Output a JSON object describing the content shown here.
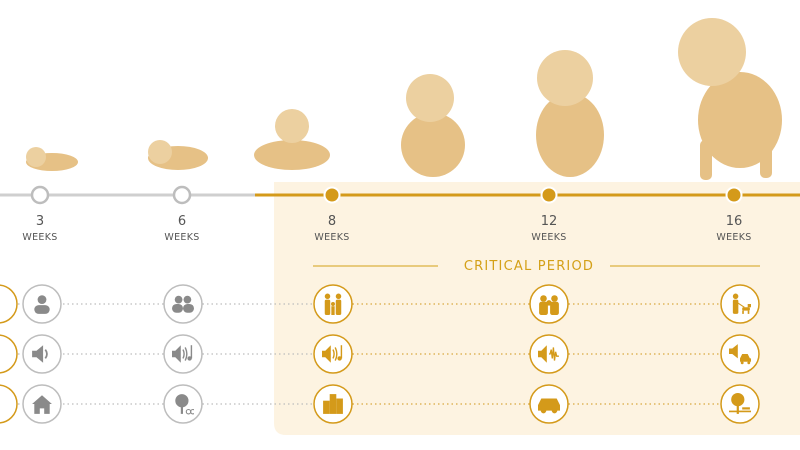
{
  "timeline": {
    "milestones": [
      {
        "number": "3",
        "unit": "WEEKS"
      },
      {
        "number": "6",
        "unit": "WEEKS"
      },
      {
        "number": "8",
        "unit": "WEEKS"
      },
      {
        "number": "12",
        "unit": "WEEKS"
      },
      {
        "number": "16",
        "unit": "WEEKS"
      }
    ]
  },
  "critical_period": {
    "label": "CRITICAL PERIOD"
  }
}
